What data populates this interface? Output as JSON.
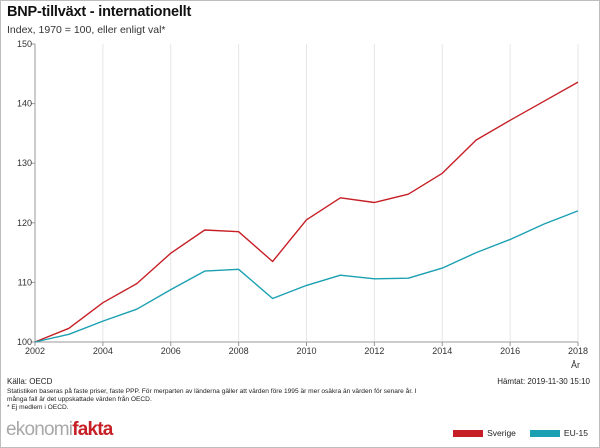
{
  "header": {
    "title": "BNP-tillväxt - internationellt",
    "subtitle": "Index, 1970 = 100, eller enligt val*"
  },
  "chart_data": {
    "type": "line",
    "title": "BNP-tillväxt - internationellt",
    "subtitle": "Index, 1970 = 100, eller enligt val*",
    "xlabel": "År",
    "ylabel": "",
    "xlim": [
      2002,
      2018
    ],
    "ylim": [
      100,
      150
    ],
    "x_ticks": [
      2002,
      2004,
      2006,
      2008,
      2010,
      2012,
      2014,
      2016,
      2018
    ],
    "y_ticks": [
      100,
      110,
      120,
      130,
      140,
      150
    ],
    "grid": "vertical",
    "legend_position": "bottom-right",
    "x": [
      2002,
      2003,
      2004,
      2005,
      2006,
      2007,
      2008,
      2009,
      2010,
      2011,
      2012,
      2013,
      2014,
      2015,
      2016,
      2017,
      2018
    ],
    "series": [
      {
        "name": "Sverige",
        "color": "#c62026",
        "values": [
          100,
          102.3,
          106.6,
          109.8,
          114.9,
          118.8,
          118.5,
          113.5,
          120.5,
          124.2,
          123.4,
          124.8,
          128.3,
          133.9,
          137.2,
          140.4,
          143.6
        ]
      },
      {
        "name": "EU-15",
        "color": "#1aa0b2",
        "values": [
          100,
          101.3,
          103.5,
          105.5,
          108.8,
          111.9,
          112.2,
          107.3,
          109.5,
          111.2,
          110.6,
          110.7,
          112.4,
          115.0,
          117.2,
          119.8,
          122.0
        ]
      }
    ]
  },
  "footer": {
    "source": "Källa: OECD",
    "retrieved": "Hämtat: 2019-11-30 15:10",
    "notes": [
      "Statistiken baseras på faste priser, faste PPP. För merparten av länderna gäller att värden före 1995 är mer osäkra än värden för senare år. I",
      "många fall är det uppskattade värden från OECD.",
      "* Ej medlem i OECD."
    ],
    "logo_part1": "ekonomi",
    "logo_part2": "fakta"
  }
}
